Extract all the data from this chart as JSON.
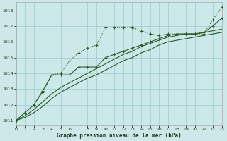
{
  "xlabel": "Graphe pression niveau de la mer (hPa)",
  "background_color": "#cce8e8",
  "grid_color": "#99cccc",
  "line_color": "#2d5a2d",
  "x_ticks": [
    0,
    1,
    2,
    3,
    4,
    5,
    6,
    7,
    8,
    9,
    10,
    11,
    12,
    13,
    14,
    15,
    16,
    17,
    18,
    19,
    20,
    21,
    22,
    23
  ],
  "y_ticks": [
    1011,
    1012,
    1013,
    1014,
    1015,
    1016,
    1017,
    1018
  ],
  "xlim": [
    0,
    23
  ],
  "ylim": [
    1010.7,
    1018.5
  ],
  "series_dotted": [
    1011.0,
    1011.5,
    1012.0,
    1012.8,
    1013.9,
    1014.0,
    1014.8,
    1015.3,
    1015.6,
    1015.8,
    1016.9,
    1016.9,
    1016.9,
    1016.9,
    1016.7,
    1016.5,
    1016.4,
    1016.5,
    1016.5,
    1016.5,
    1016.5,
    1016.5,
    1017.4,
    1018.2
  ],
  "series_solid_markers": [
    1011.0,
    1011.5,
    1012.0,
    1012.9,
    1013.9,
    1013.9,
    1013.9,
    1014.4,
    1014.4,
    1014.4,
    1015.0,
    1015.2,
    1015.4,
    1015.6,
    1015.8,
    1016.0,
    1016.2,
    1016.4,
    1016.5,
    1016.5,
    1016.5,
    1016.6,
    1017.0,
    1017.5
  ],
  "series_line1": [
    1011.0,
    1011.3,
    1011.7,
    1012.2,
    1012.7,
    1013.1,
    1013.4,
    1013.7,
    1014.0,
    1014.3,
    1014.6,
    1014.9,
    1015.2,
    1015.4,
    1015.7,
    1015.9,
    1016.1,
    1016.3,
    1016.4,
    1016.5,
    1016.5,
    1016.6,
    1016.7,
    1016.8
  ],
  "series_line2": [
    1011.0,
    1011.2,
    1011.5,
    1011.9,
    1012.4,
    1012.8,
    1013.1,
    1013.4,
    1013.7,
    1013.9,
    1014.2,
    1014.5,
    1014.8,
    1015.0,
    1015.3,
    1015.5,
    1015.8,
    1016.0,
    1016.1,
    1016.2,
    1016.3,
    1016.4,
    1016.5,
    1016.6
  ]
}
